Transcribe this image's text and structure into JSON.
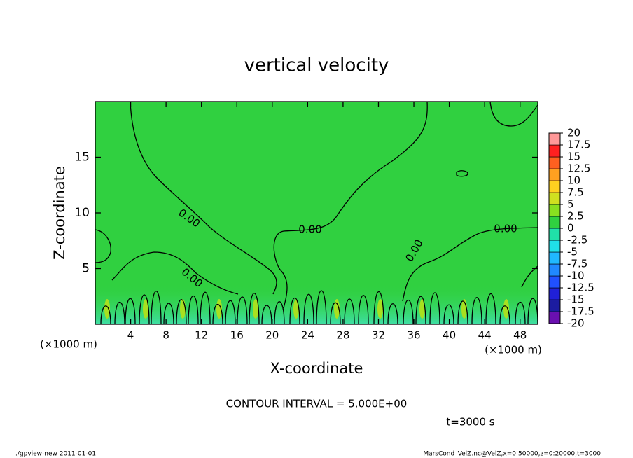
{
  "chart_data": {
    "type": "contour",
    "title": "vertical velocity",
    "xlabel": "X-coordinate",
    "ylabel": "Z-coordinate",
    "x_unit": "(×1000 m)",
    "xlim": [
      0,
      50
    ],
    "ylim": [
      0,
      20
    ],
    "xticks": [
      4,
      8,
      12,
      16,
      20,
      24,
      28,
      32,
      36,
      40,
      44,
      48
    ],
    "yticks": [
      5,
      10,
      15
    ],
    "contour_labels": [
      "0.00",
      "0.00",
      "0.00",
      "0.00",
      "0.00"
    ],
    "contour_interval_text": "CONTOUR INTERVAL = 5.000E+00",
    "time_text": "t=3000 s",
    "footer_left": "./gpview-new  2011-01-01",
    "footer_right": "MarsCond_VelZ.nc@VelZ,x=0:50000,z=0:20000,t=3000",
    "colorbar": {
      "levels": [
        -20,
        -17.5,
        -15,
        -12.5,
        -10,
        -7.5,
        -5,
        -2.5,
        0,
        2.5,
        5,
        7.5,
        10,
        12.5,
        15,
        17.5,
        20
      ],
      "colors": [
        "#6a10b0",
        "#1c1ca0",
        "#2020d8",
        "#2050ff",
        "#2088ff",
        "#20b8ff",
        "#20e0e8",
        "#20e0a8",
        "#30d040",
        "#88e020",
        "#d0e020",
        "#ffd020",
        "#ffa020",
        "#ff6020",
        "#ff2020",
        "#ff9898"
      ]
    }
  }
}
